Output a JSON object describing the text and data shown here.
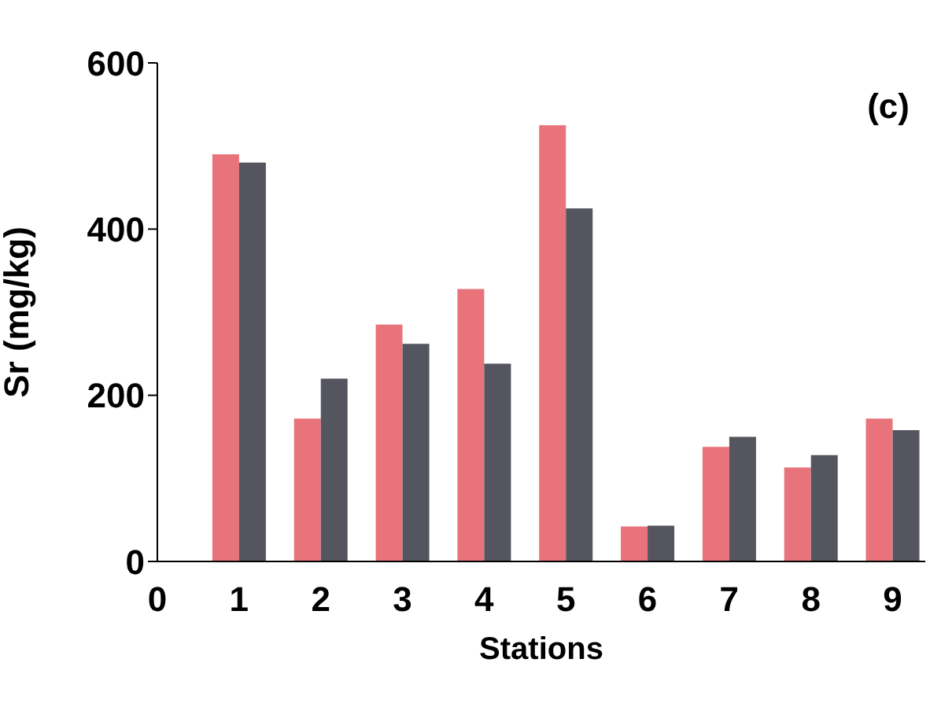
{
  "chart_data": {
    "type": "bar",
    "ylabel": "Sr  (mg/kg)",
    "xlabel": "Stations",
    "annotations": [
      "(c)"
    ],
    "x": [
      1,
      2,
      3,
      4,
      5,
      6,
      7,
      8,
      9
    ],
    "xlim": [
      0,
      9.4
    ],
    "xticks": [
      0,
      1,
      2,
      3,
      4,
      5,
      6,
      7,
      8,
      9
    ],
    "ylim": [
      0,
      600
    ],
    "yticks": [
      0,
      200,
      400,
      600
    ],
    "grid": false,
    "legend": false,
    "series": [
      {
        "color": "#e8737a",
        "values": [
          490,
          172,
          285,
          328,
          525,
          42,
          138,
          113,
          172
        ]
      },
      {
        "color": "#555560",
        "values": [
          480,
          220,
          262,
          238,
          425,
          43,
          150,
          128,
          158
        ]
      }
    ]
  }
}
